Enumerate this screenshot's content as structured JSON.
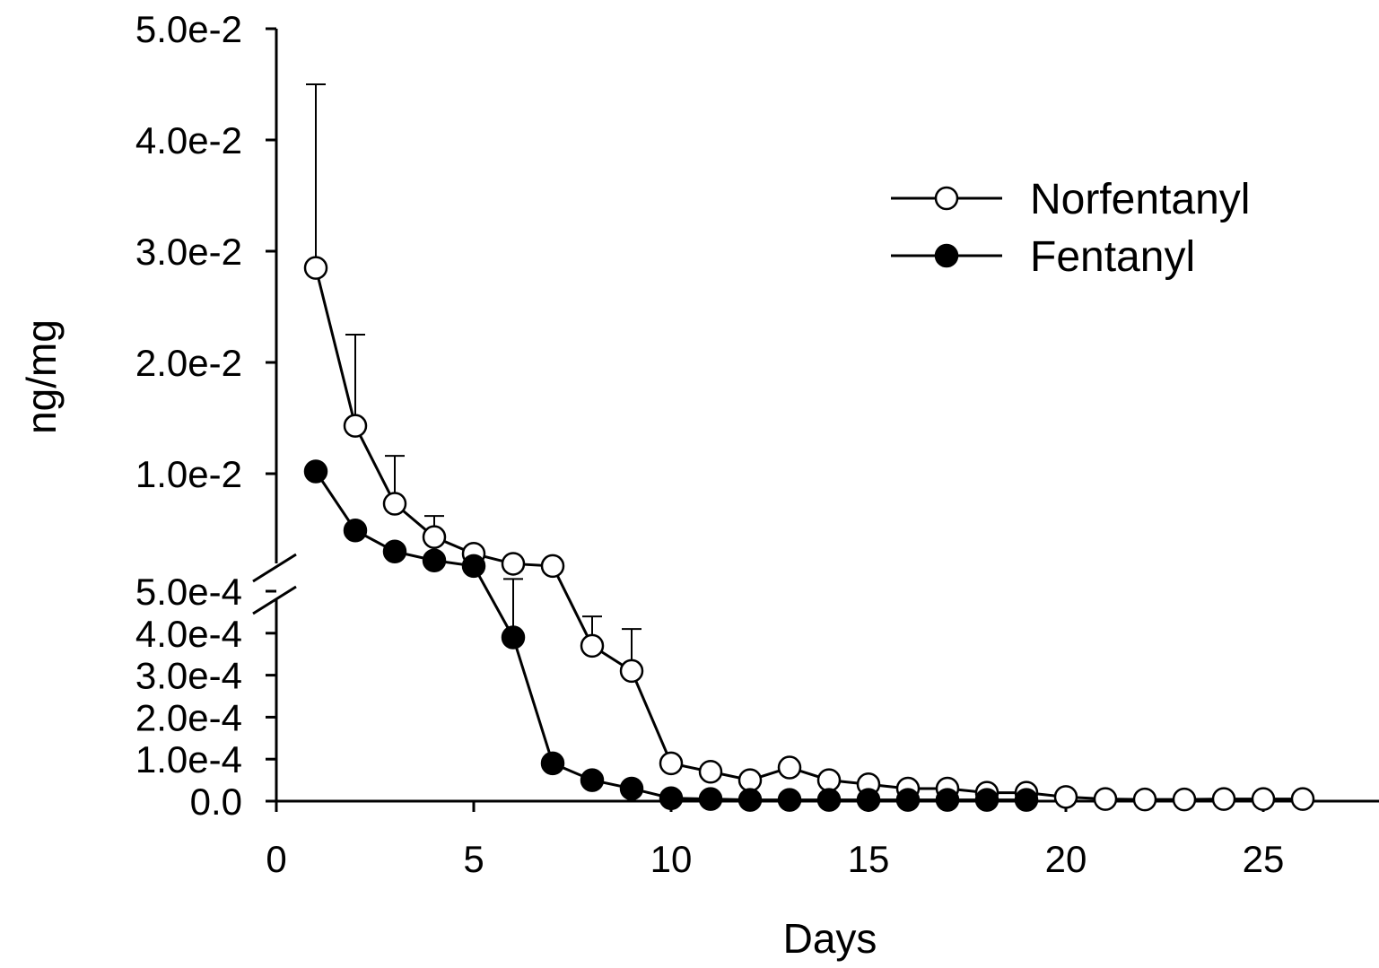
{
  "chart_data": {
    "type": "line",
    "xlabel": "Days",
    "ylabel": "ng/mg",
    "xlim": [
      0,
      28
    ],
    "x_ticks": [
      0,
      5,
      10,
      15,
      20,
      25
    ],
    "x_tick_labels": [
      "0",
      "5",
      "10",
      "15",
      "20",
      "25"
    ],
    "y_axis_broken": true,
    "y_lower_segment": {
      "range": [
        0,
        0.0005
      ],
      "ticks": [
        0,
        0.0001,
        0.0002,
        0.0003,
        0.0004,
        0.0005
      ],
      "tick_labels": [
        "0.0",
        "1.0e-4",
        "2.0e-4",
        "3.0e-4",
        "4.0e-4",
        "5.0e-4"
      ]
    },
    "y_upper_segment": {
      "range": [
        0.0005,
        0.05
      ],
      "ticks": [
        0.01,
        0.02,
        0.03,
        0.04,
        0.05
      ],
      "tick_labels": [
        "1.0e-2",
        "2.0e-2",
        "3.0e-2",
        "4.0e-2",
        "5.0e-2"
      ]
    },
    "grid": false,
    "legend_position": "top-right",
    "series": [
      {
        "name": "Norfentanyl",
        "marker": "open-circle",
        "x": [
          1,
          2,
          3,
          4,
          5,
          6,
          7,
          8,
          9,
          10,
          11,
          12,
          13,
          14,
          15,
          16,
          17,
          18,
          19,
          20,
          21,
          22,
          23,
          24,
          25,
          26
        ],
        "y": [
          0.0285,
          0.0143,
          0.0073,
          0.0043,
          0.0028,
          0.0019,
          0.0017,
          0.00037,
          0.00031,
          9e-05,
          7e-05,
          5e-05,
          8e-05,
          5e-05,
          4e-05,
          3e-05,
          3e-05,
          2e-05,
          2e-05,
          1e-05,
          5e-06,
          4e-06,
          4e-06,
          5e-06,
          5e-06,
          5e-06
        ],
        "error_upper": [
          0.045,
          0.0225,
          0.0116,
          0.0062,
          0.0033,
          null,
          null,
          0.00044,
          0.00041,
          null,
          null,
          null,
          null,
          null,
          null,
          null,
          null,
          null,
          null,
          null,
          null,
          null,
          null,
          null,
          null,
          null
        ]
      },
      {
        "name": "Fentanyl",
        "marker": "filled-circle",
        "x": [
          1,
          2,
          3,
          4,
          5,
          6,
          7,
          8,
          9,
          10,
          11,
          12,
          13,
          14,
          15,
          16,
          17,
          18,
          19
        ],
        "y": [
          0.0102,
          0.0049,
          0.003,
          0.0022,
          0.0017,
          0.00039,
          9e-05,
          5e-05,
          3e-05,
          7e-06,
          5e-06,
          3e-06,
          3e-06,
          3e-06,
          3e-06,
          3e-06,
          3e-06,
          3e-06,
          3e-06
        ],
        "error_upper": [
          null,
          null,
          null,
          null,
          null,
          0.00053,
          null,
          null,
          null,
          null,
          null,
          null,
          null,
          null,
          null,
          null,
          null,
          null,
          null
        ]
      }
    ]
  }
}
